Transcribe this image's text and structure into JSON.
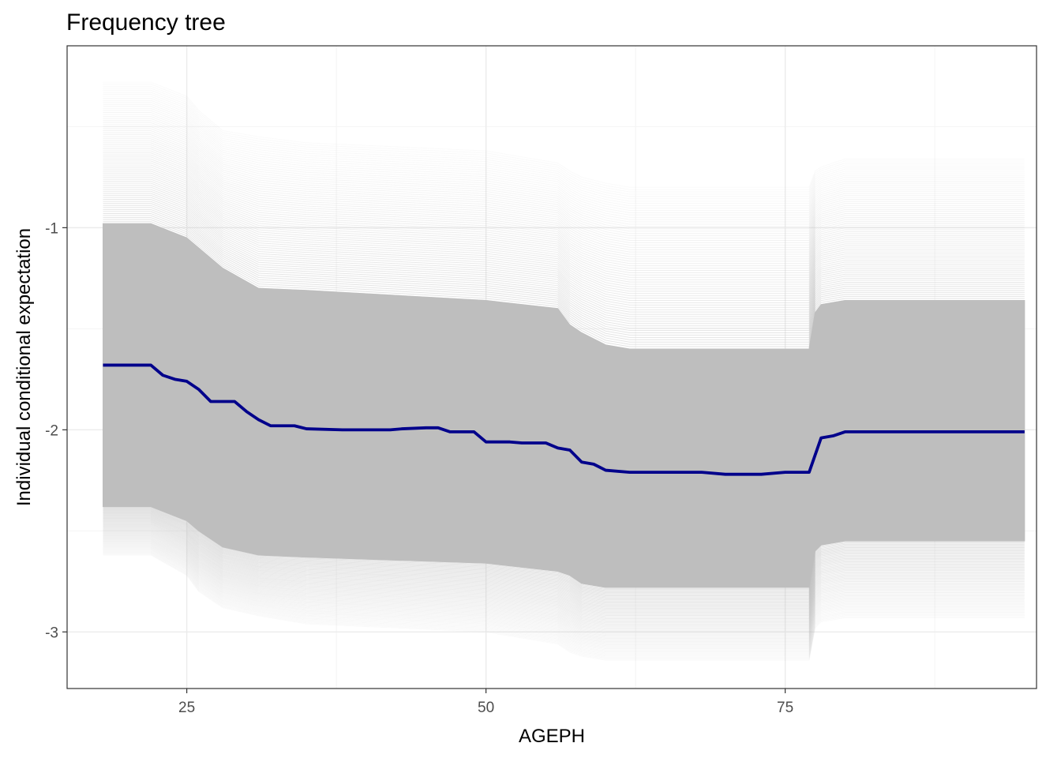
{
  "chart_data": {
    "type": "line",
    "title": "Frequency tree",
    "xlabel": "AGEPH",
    "ylabel": "Individual conditional expectation",
    "xlim": [
      15,
      96
    ],
    "ylim": [
      -3.28,
      -0.1
    ],
    "x_ticks": [
      25,
      50,
      75
    ],
    "x_tick_labels": [
      "25",
      "50",
      "75"
    ],
    "y_ticks": [
      -1,
      -2,
      -3
    ],
    "y_tick_labels": [
      "-1",
      "-2",
      "-3"
    ],
    "grid": true,
    "colors": {
      "average": "#00008B",
      "ice_lines": "#BEBEBE",
      "panel_border": "#333333",
      "grid_major": "#EBEBEB",
      "grid_minor": "#F4F4F4"
    },
    "ice_band": {
      "upper_envelope": {
        "x": [
          18,
          22,
          25,
          26,
          28,
          31,
          35,
          50,
          56,
          57,
          58,
          60,
          62,
          77,
          77.5,
          78,
          80,
          95
        ],
        "y": [
          -0.28,
          -0.28,
          -0.35,
          -0.42,
          -0.52,
          -0.55,
          -0.58,
          -0.62,
          -0.68,
          -0.72,
          -0.75,
          -0.78,
          -0.8,
          -0.8,
          -0.72,
          -0.7,
          -0.66,
          -0.66
        ]
      },
      "lower_envelope": {
        "x": [
          18,
          22,
          25,
          26,
          28,
          31,
          35,
          50,
          56,
          57,
          58,
          60,
          62,
          77,
          77.5,
          78,
          80,
          95
        ],
        "y": [
          -2.62,
          -2.62,
          -2.72,
          -2.8,
          -2.88,
          -2.92,
          -2.96,
          -3.0,
          -3.06,
          -3.1,
          -3.12,
          -3.14,
          -3.14,
          -3.14,
          -2.98,
          -2.95,
          -2.93,
          -2.93
        ]
      },
      "dense_upper": {
        "x": [
          18,
          22,
          25,
          26,
          28,
          31,
          35,
          50,
          56,
          57,
          58,
          60,
          62,
          77,
          77.5,
          78,
          80,
          95
        ],
        "y": [
          -0.98,
          -0.98,
          -1.05,
          -1.1,
          -1.2,
          -1.3,
          -1.31,
          -1.36,
          -1.4,
          -1.48,
          -1.52,
          -1.58,
          -1.6,
          -1.6,
          -1.42,
          -1.38,
          -1.36,
          -1.36
        ]
      },
      "dense_lower": {
        "x": [
          18,
          22,
          25,
          26,
          28,
          31,
          35,
          50,
          56,
          57,
          58,
          60,
          62,
          77,
          77.5,
          78,
          80,
          95
        ],
        "y": [
          -2.38,
          -2.38,
          -2.45,
          -2.5,
          -2.58,
          -2.62,
          -2.63,
          -2.66,
          -2.7,
          -2.72,
          -2.76,
          -2.78,
          -2.78,
          -2.78,
          -2.6,
          -2.57,
          -2.55,
          -2.55
        ]
      }
    },
    "series": [
      {
        "x": [
          18,
          22,
          23,
          24,
          25,
          26,
          27,
          29,
          30,
          31,
          32,
          34,
          35,
          38,
          42,
          43,
          45,
          46,
          47,
          49,
          50,
          52,
          53,
          55,
          56,
          57,
          58,
          59,
          60,
          62,
          65,
          68,
          70,
          73,
          75,
          77,
          78,
          79,
          80,
          95
        ],
        "y": [
          -1.68,
          -1.68,
          -1.73,
          -1.75,
          -1.76,
          -1.8,
          -1.86,
          -1.86,
          -1.91,
          -1.95,
          -1.98,
          -1.98,
          -1.995,
          -2.0,
          -2.0,
          -1.995,
          -1.99,
          -1.99,
          -2.01,
          -2.01,
          -2.06,
          -2.06,
          -2.065,
          -2.065,
          -2.09,
          -2.1,
          -2.16,
          -2.17,
          -2.2,
          -2.21,
          -2.21,
          -2.21,
          -2.22,
          -2.22,
          -2.21,
          -2.21,
          -2.04,
          -2.03,
          -2.01,
          -2.01
        ]
      }
    ]
  }
}
